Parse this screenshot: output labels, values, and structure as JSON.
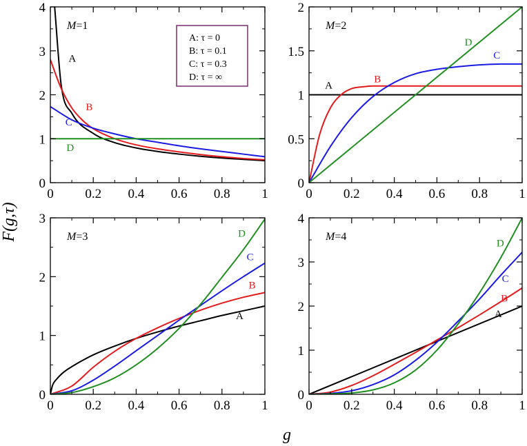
{
  "figure": {
    "ylabel": "F(g,τ)",
    "xlabel": "g",
    "colors": {
      "A": "#000000",
      "B": "#e41a1c",
      "C": "#1a1ae6",
      "D": "#1f8f1f",
      "legend_border": "#7a2a6e"
    }
  },
  "legend": {
    "entries": [
      "A: τ = 0",
      "B: τ = 0.1",
      "C: τ = 0.3",
      "D: τ = ∞"
    ]
  },
  "chart_data": [
    {
      "type": "line",
      "panel_label": "M=1",
      "M": 1,
      "xlim": [
        0,
        1
      ],
      "ylim": [
        0,
        4
      ],
      "xticks": [
        0,
        0.2,
        0.4,
        0.6,
        0.8,
        1
      ],
      "xtick_labels": [
        "0",
        "0.2",
        "0.4",
        "0.6",
        "0.8",
        "1"
      ],
      "yticks": [
        0,
        1,
        2,
        3,
        4
      ],
      "ytick_labels": [
        "0",
        "1",
        "2",
        "3",
        "4"
      ],
      "series": [
        {
          "name": "A",
          "tau": 0,
          "x": [
            0.02,
            0.05,
            0.1,
            0.2,
            0.3,
            0.4,
            0.5,
            0.6,
            0.7,
            0.8,
            0.9,
            1.0
          ],
          "values": [
            4.0,
            2.24,
            1.58,
            1.12,
            0.91,
            0.79,
            0.71,
            0.65,
            0.6,
            0.56,
            0.53,
            0.5
          ]
        },
        {
          "name": "B",
          "tau": 0.1,
          "x": [
            0,
            0.05,
            0.1,
            0.15,
            0.2,
            0.3,
            0.4,
            0.5,
            0.6,
            0.7,
            0.8,
            0.9,
            1.0
          ],
          "values": [
            2.8,
            2.15,
            1.7,
            1.42,
            1.23,
            1.0,
            0.86,
            0.77,
            0.7,
            0.64,
            0.59,
            0.55,
            0.52
          ]
        },
        {
          "name": "C",
          "tau": 0.3,
          "x": [
            0,
            0.1,
            0.2,
            0.3,
            0.4,
            0.5,
            0.6,
            0.7,
            0.8,
            0.9,
            1.0
          ],
          "values": [
            1.73,
            1.43,
            1.24,
            1.11,
            1.0,
            0.92,
            0.84,
            0.77,
            0.71,
            0.65,
            0.59
          ]
        },
        {
          "name": "D",
          "tau": "∞",
          "x": [
            0,
            1
          ],
          "values": [
            1,
            1
          ]
        }
      ],
      "curve_labels": [
        {
          "name": "A",
          "text": "A",
          "x": 0.085,
          "y": 2.75
        },
        {
          "name": "B",
          "text": "B",
          "x": 0.165,
          "y": 1.65
        },
        {
          "name": "C",
          "text": "C",
          "x": 0.07,
          "y": 1.3
        },
        {
          "name": "D",
          "text": "D",
          "x": 0.075,
          "y": 0.72
        }
      ]
    },
    {
      "type": "line",
      "panel_label": "M=2",
      "M": 2,
      "xlim": [
        0,
        1
      ],
      "ylim": [
        0,
        2
      ],
      "xticks": [
        0,
        0.2,
        0.4,
        0.6,
        0.8,
        1
      ],
      "xtick_labels": [
        "0",
        "0.2",
        "0.4",
        "0.6",
        "0.8",
        "1"
      ],
      "yticks": [
        0,
        0.5,
        1,
        1.5,
        2
      ],
      "ytick_labels": [
        "0",
        "0.5",
        "1",
        "1.5",
        "2"
      ],
      "series": [
        {
          "name": "A",
          "tau": 0,
          "x": [
            0,
            1
          ],
          "values": [
            1,
            1
          ]
        },
        {
          "name": "B",
          "tau": 0.1,
          "x": [
            0,
            0.05,
            0.1,
            0.15,
            0.2,
            0.25,
            0.3,
            0.4,
            0.5,
            0.7,
            1.0
          ],
          "values": [
            0,
            0.55,
            0.85,
            1.0,
            1.07,
            1.09,
            1.1,
            1.1,
            1.1,
            1.1,
            1.1
          ]
        },
        {
          "name": "C",
          "tau": 0.3,
          "x": [
            0,
            0.1,
            0.2,
            0.3,
            0.4,
            0.5,
            0.6,
            0.7,
            0.8,
            0.9,
            1.0
          ],
          "values": [
            0,
            0.41,
            0.74,
            0.98,
            1.14,
            1.24,
            1.29,
            1.32,
            1.34,
            1.35,
            1.35
          ]
        },
        {
          "name": "D",
          "tau": "∞",
          "x": [
            0,
            1
          ],
          "values": [
            0,
            2
          ]
        }
      ],
      "curve_labels": [
        {
          "name": "A",
          "text": "A",
          "x": 0.075,
          "y": 1.07
        },
        {
          "name": "B",
          "text": "B",
          "x": 0.305,
          "y": 1.14
        },
        {
          "name": "C",
          "text": "C",
          "x": 0.865,
          "y": 1.41
        },
        {
          "name": "D",
          "text": "D",
          "x": 0.73,
          "y": 1.56
        }
      ]
    },
    {
      "type": "line",
      "panel_label": "M=3",
      "M": 3,
      "xlim": [
        0,
        1
      ],
      "ylim": [
        0,
        3
      ],
      "xticks": [
        0,
        0.2,
        0.4,
        0.6,
        0.8,
        1
      ],
      "xtick_labels": [
        "0",
        "0.2",
        "0.4",
        "0.6",
        "0.8",
        "1"
      ],
      "yticks": [
        0,
        1,
        2,
        3
      ],
      "ytick_labels": [
        "0",
        "1",
        "2",
        "3"
      ],
      "series": [
        {
          "name": "A",
          "tau": 0,
          "x": [
            0,
            0.01,
            0.03,
            0.06,
            0.1,
            0.2,
            0.3,
            0.4,
            0.5,
            0.6,
            0.7,
            0.8,
            0.9,
            1.0
          ],
          "values": [
            0,
            0.15,
            0.26,
            0.37,
            0.47,
            0.67,
            0.82,
            0.95,
            1.06,
            1.16,
            1.25,
            1.34,
            1.42,
            1.5
          ]
        },
        {
          "name": "B",
          "tau": 0.1,
          "x": [
            0,
            0.1,
            0.2,
            0.3,
            0.4,
            0.5,
            0.6,
            0.7,
            0.8,
            0.9,
            1.0
          ],
          "values": [
            0,
            0.14,
            0.46,
            0.73,
            0.95,
            1.13,
            1.29,
            1.43,
            1.55,
            1.65,
            1.73
          ]
        },
        {
          "name": "C",
          "tau": 0.3,
          "x": [
            0,
            0.1,
            0.2,
            0.3,
            0.4,
            0.5,
            0.6,
            0.7,
            0.8,
            0.9,
            1.0
          ],
          "values": [
            0,
            0.06,
            0.24,
            0.48,
            0.74,
            1.0,
            1.26,
            1.51,
            1.76,
            2.0,
            2.23
          ]
        },
        {
          "name": "D",
          "tau": "∞",
          "x": [
            0,
            0.1,
            0.2,
            0.3,
            0.4,
            0.5,
            0.6,
            0.7,
            0.8,
            0.9,
            1.0
          ],
          "values": [
            0,
            0.03,
            0.13,
            0.28,
            0.5,
            0.78,
            1.12,
            1.53,
            1.99,
            2.46,
            2.98
          ]
        }
      ],
      "curve_labels": [
        {
          "name": "A",
          "text": "A",
          "x": 0.865,
          "y": 1.28
        },
        {
          "name": "B",
          "text": "B",
          "x": 0.925,
          "y": 1.8
        },
        {
          "name": "C",
          "text": "C",
          "x": 0.915,
          "y": 2.28
        },
        {
          "name": "D",
          "text": "D",
          "x": 0.875,
          "y": 2.68
        }
      ]
    },
    {
      "type": "line",
      "panel_label": "M=4",
      "M": 4,
      "xlim": [
        0,
        1
      ],
      "ylim": [
        0,
        4
      ],
      "xticks": [
        0,
        0.2,
        0.4,
        0.6,
        0.8,
        1
      ],
      "xtick_labels": [
        "0",
        "0.2",
        "0.4",
        "0.6",
        "0.8",
        "1"
      ],
      "yticks": [
        0,
        1,
        2,
        3,
        4
      ],
      "ytick_labels": [
        "0",
        "1",
        "2",
        "3",
        "4"
      ],
      "series": [
        {
          "name": "A",
          "tau": 0,
          "x": [
            0,
            1
          ],
          "values": [
            0,
            2
          ]
        },
        {
          "name": "B",
          "tau": 0.1,
          "x": [
            0,
            0.1,
            0.2,
            0.3,
            0.4,
            0.5,
            0.6,
            0.7,
            0.8,
            0.9,
            1.0
          ],
          "values": [
            0,
            0.05,
            0.2,
            0.42,
            0.68,
            0.95,
            1.23,
            1.51,
            1.8,
            2.1,
            2.41
          ]
        },
        {
          "name": "C",
          "tau": 0.3,
          "x": [
            0,
            0.1,
            0.2,
            0.3,
            0.4,
            0.5,
            0.6,
            0.7,
            0.8,
            0.9,
            1.0
          ],
          "values": [
            0,
            0.02,
            0.08,
            0.22,
            0.44,
            0.77,
            1.18,
            1.66,
            2.16,
            2.7,
            3.22
          ]
        },
        {
          "name": "D",
          "tau": "∞",
          "x": [
            0,
            0.1,
            0.2,
            0.3,
            0.4,
            0.5,
            0.6,
            0.7,
            0.8,
            0.9,
            1.0
          ],
          "values": [
            0,
            0.01,
            0.03,
            0.1,
            0.26,
            0.55,
            1.0,
            1.6,
            2.3,
            3.1,
            4.0
          ]
        }
      ],
      "curve_labels": [
        {
          "name": "A",
          "text": "A",
          "x": 0.87,
          "y": 1.75
        },
        {
          "name": "B",
          "text": "B",
          "x": 0.9,
          "y": 2.1
        },
        {
          "name": "C",
          "text": "C",
          "x": 0.905,
          "y": 2.55
        },
        {
          "name": "D",
          "text": "D",
          "x": 0.88,
          "y": 3.35
        }
      ]
    }
  ]
}
